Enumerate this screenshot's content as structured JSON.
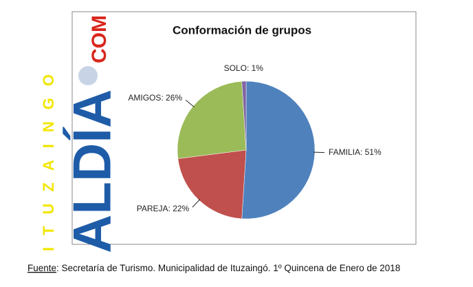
{
  "chart_data": {
    "type": "pie",
    "title": "Conformación de grupos",
    "values": [
      51,
      22,
      26,
      1
    ],
    "value_labels": [
      "FAMILIA: 51%",
      "PAREJA: 22%",
      "AMIGOS: 26%",
      "SOLO: 1%"
    ],
    "colors": [
      "#4f81bd",
      "#c0504d",
      "#9bbb59",
      "#8064a2"
    ]
  },
  "watermark": {
    "vertical": "ITUZAINGO",
    "brand": "ALDÍA",
    "domain": "COM"
  },
  "source": {
    "label": "Fuente",
    "text": ": Secretaría de Turismo. Municipalidad de Ituzaingó. 1º Quincena de Enero de 2018"
  }
}
